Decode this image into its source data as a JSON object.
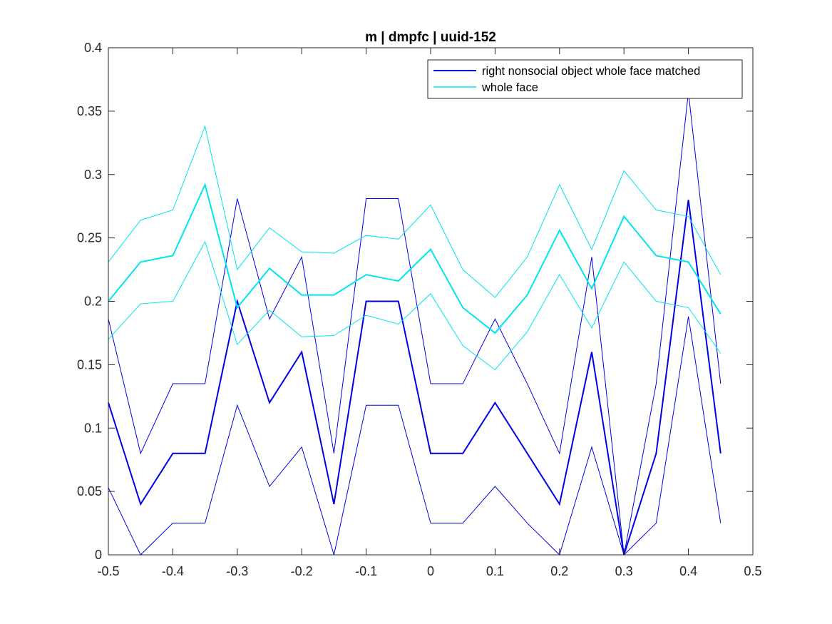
{
  "chart_data": {
    "type": "line",
    "title": "m | dmpfc | uuid-152",
    "xlabel": "",
    "ylabel": "",
    "xlim": [
      -0.5,
      0.5
    ],
    "ylim": [
      0,
      0.4
    ],
    "xticks": [
      -0.5,
      -0.4,
      -0.3,
      -0.2,
      -0.1,
      0,
      0.1,
      0.2,
      0.3,
      0.4,
      0.5
    ],
    "xtick_labels": [
      "-0.5",
      "-0.4",
      "-0.3",
      "-0.2",
      "-0.1",
      "0",
      "0.1",
      "0.2",
      "0.3",
      "0.4",
      "0.5"
    ],
    "yticks": [
      0,
      0.05,
      0.1,
      0.15,
      0.2,
      0.25,
      0.3,
      0.35,
      0.4
    ],
    "ytick_labels": [
      "0",
      "0.05",
      "0.1",
      "0.15",
      "0.2",
      "0.25",
      "0.3",
      "0.35",
      "0.4"
    ],
    "grid": false,
    "legend_position": "top-right",
    "x": [
      -0.5,
      -0.45,
      -0.4,
      -0.35,
      -0.3,
      -0.25,
      -0.2,
      -0.15,
      -0.1,
      -0.05,
      0,
      0.05,
      0.1,
      0.15,
      0.2,
      0.25,
      0.3,
      0.35,
      0.4,
      0.45
    ],
    "series": [
      {
        "name": "right nonsocial object whole face matched",
        "color": "#0000e6",
        "values": [
          0.12,
          0.04,
          0.08,
          0.08,
          0.2,
          0.12,
          0.16,
          0.04,
          0.2,
          0.2,
          0.08,
          0.08,
          0.12,
          0.08,
          0.04,
          0.16,
          0.0,
          0.08,
          0.28,
          0.08
        ],
        "upper": [
          0.186,
          0.08,
          0.135,
          0.135,
          0.281,
          0.186,
          0.235,
          0.08,
          0.281,
          0.281,
          0.135,
          0.135,
          0.186,
          0.135,
          0.08,
          0.235,
          0.0,
          0.135,
          0.365,
          0.135
        ],
        "lower": [
          0.053,
          0.0,
          0.025,
          0.025,
          0.118,
          0.054,
          0.085,
          0.0,
          0.118,
          0.118,
          0.025,
          0.025,
          0.054,
          0.025,
          0.0,
          0.085,
          0.0,
          0.025,
          0.188,
          0.025
        ]
      },
      {
        "name": "whole face",
        "color": "#00e5ee",
        "values": [
          0.2,
          0.231,
          0.236,
          0.292,
          0.195,
          0.226,
          0.205,
          0.205,
          0.221,
          0.216,
          0.241,
          0.195,
          0.175,
          0.205,
          0.256,
          0.21,
          0.267,
          0.236,
          0.231,
          0.19
        ],
        "upper": [
          0.231,
          0.264,
          0.272,
          0.338,
          0.225,
          0.258,
          0.239,
          0.238,
          0.252,
          0.249,
          0.276,
          0.225,
          0.203,
          0.235,
          0.292,
          0.241,
          0.303,
          0.272,
          0.267,
          0.221
        ],
        "lower": [
          0.17,
          0.198,
          0.2,
          0.247,
          0.166,
          0.193,
          0.172,
          0.173,
          0.189,
          0.182,
          0.206,
          0.165,
          0.146,
          0.176,
          0.221,
          0.179,
          0.231,
          0.2,
          0.195,
          0.159
        ]
      }
    ]
  }
}
